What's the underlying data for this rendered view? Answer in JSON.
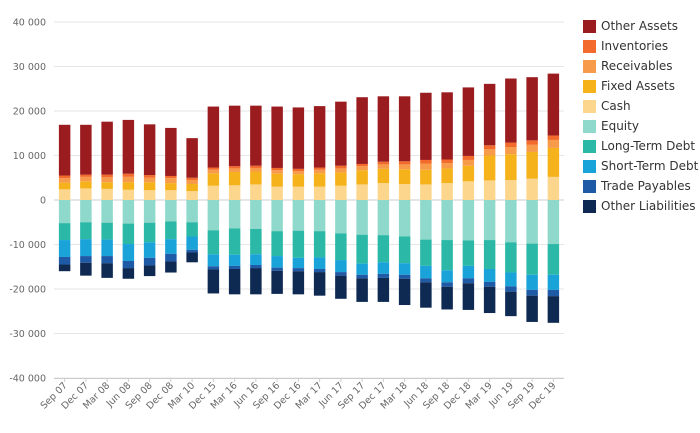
{
  "chart_data": {
    "type": "bar",
    "stacked": true,
    "grid": true,
    "legend_position": "right",
    "categories": [
      "Sep 07",
      "Dec 07",
      "Mar 08",
      "Jun 08",
      "Sep 08",
      "Dec 08",
      "Mar 10",
      "Dec 15",
      "Mar 16",
      "Jun 16",
      "Sep 16",
      "Dec 16",
      "Mar 17",
      "Jun 17",
      "Sep 17",
      "Dec 17",
      "Mar 18",
      "Jun 18",
      "Sep 18",
      "Dec 18",
      "Mar 19",
      "Jun 19",
      "Sep 19",
      "Dec 19"
    ],
    "x_tick_labels": [
      "Sep 07",
      "Dec 07",
      "Mar 08",
      "Jun 08",
      "Sep 08",
      "Dec 08",
      "Mar 10",
      "Dec 15",
      "Mar 16",
      "Jun 16",
      "Sep 16",
      "Dec 16",
      "Mar 17",
      "Jun 17",
      "Sep 17",
      "Dec 17",
      "Mar 18",
      "Jun 18",
      "Sep 18",
      "Dec 18",
      "Mar 19",
      "Jun 19",
      "Sep 19",
      "Dec 19"
    ],
    "y_ticks": [
      -40000,
      -30000,
      -20000,
      -10000,
      0,
      10000,
      20000,
      30000,
      40000
    ],
    "y_tick_labels": [
      "-40 000",
      "-30 000",
      "-20 000",
      "-10 000",
      "0",
      "10 000",
      "20 000",
      "30 000",
      "40 000"
    ],
    "ylim": [
      -40000,
      40000
    ],
    "positive_series": [
      {
        "name": "Cash",
        "color": "#fcd68c",
        "values": [
          2400,
          2600,
          2500,
          2300,
          2200,
          2200,
          2000,
          3200,
          3300,
          3500,
          3000,
          3000,
          3000,
          3200,
          3500,
          3800,
          3600,
          3500,
          3800,
          4200,
          4400,
          4500,
          4800,
          5200
        ]
      },
      {
        "name": "Fixed Assets",
        "color": "#f5b21a",
        "values": [
          1500,
          1600,
          1500,
          1700,
          1800,
          1600,
          1600,
          2800,
          3000,
          2900,
          2900,
          2800,
          3000,
          3000,
          3200,
          3200,
          3300,
          3300,
          3300,
          3500,
          5600,
          5800,
          6000,
          6500
        ]
      },
      {
        "name": "Receivables",
        "color": "#f79a4a",
        "values": [
          1000,
          1000,
          1100,
          1200,
          1000,
          1100,
          900,
          800,
          800,
          800,
          800,
          700,
          800,
          900,
          900,
          1000,
          1100,
          1400,
          1200,
          1300,
          1400,
          1600,
          1600,
          1800
        ]
      },
      {
        "name": "Inventories",
        "color": "#f26b2c",
        "values": [
          600,
          500,
          600,
          700,
          600,
          500,
          500,
          500,
          500,
          500,
          500,
          500,
          500,
          600,
          500,
          600,
          700,
          800,
          800,
          900,
          900,
          1000,
          1000,
          1000
        ]
      },
      {
        "name": "Other Assets",
        "color": "#9b1c1f",
        "values": [
          11400,
          11200,
          11900,
          12100,
          11400,
          10800,
          8900,
          13700,
          13600,
          13500,
          13800,
          13800,
          13800,
          14400,
          15000,
          14700,
          14600,
          15100,
          15100,
          15400,
          13800,
          14400,
          14200,
          13900
        ]
      }
    ],
    "negative_series": [
      {
        "name": "Equity",
        "color": "#8fd9cc",
        "values": [
          -5200,
          -5000,
          -5100,
          -5300,
          -5100,
          -4800,
          -5000,
          -6800,
          -6400,
          -6500,
          -7000,
          -6900,
          -7000,
          -7500,
          -7800,
          -7900,
          -8200,
          -8900,
          -9000,
          -9100,
          -9000,
          -9500,
          -9800,
          -9900
        ]
      },
      {
        "name": "Long-Term Debt",
        "color": "#2cb8a6",
        "values": [
          -3800,
          -3800,
          -3800,
          -4600,
          -4400,
          -4000,
          -3200,
          -5400,
          -5900,
          -5700,
          -5600,
          -6100,
          -5900,
          -6000,
          -6500,
          -6100,
          -6000,
          -5900,
          -6800,
          -5700,
          -6500,
          -6800,
          -7000,
          -6900
        ]
      },
      {
        "name": "Short-Term Debt",
        "color": "#1aa3d9",
        "values": [
          -3800,
          -3800,
          -3700,
          -3800,
          -3500,
          -3300,
          -3000,
          -2700,
          -2500,
          -2400,
          -2600,
          -2300,
          -2600,
          -2700,
          -2500,
          -2600,
          -2600,
          -2800,
          -2700,
          -2800,
          -2900,
          -3100,
          -3400,
          -3400
        ]
      },
      {
        "name": "Trade Payables",
        "color": "#1f5aa6",
        "values": [
          -1700,
          -1500,
          -1600,
          -1600,
          -1700,
          -1700,
          -600,
          -700,
          -700,
          -700,
          -700,
          -700,
          -700,
          -800,
          -800,
          -900,
          -900,
          -900,
          -1000,
          -1100,
          -1100,
          -1200,
          -1300,
          -1400
        ]
      },
      {
        "name": "Other Liabilities",
        "color": "#0e2a52",
        "values": [
          -1500,
          -2900,
          -3300,
          -2400,
          -2400,
          -2500,
          -2200,
          -5400,
          -5700,
          -5900,
          -5200,
          -5200,
          -5300,
          -5200,
          -5300,
          -5400,
          -5900,
          -5700,
          -5100,
          -6000,
          -5900,
          -5500,
          -5900,
          -6000
        ]
      }
    ],
    "legend": [
      {
        "label": "Other Assets",
        "color": "#9b1c1f"
      },
      {
        "label": "Inventories",
        "color": "#f26b2c"
      },
      {
        "label": "Receivables",
        "color": "#f79a4a"
      },
      {
        "label": "Fixed Assets",
        "color": "#f5b21a"
      },
      {
        "label": "Cash",
        "color": "#fcd68c"
      },
      {
        "label": "Equity",
        "color": "#8fd9cc"
      },
      {
        "label": "Long-Term Debt",
        "color": "#2cb8a6"
      },
      {
        "label": "Short-Term Debt",
        "color": "#1aa3d9"
      },
      {
        "label": "Trade Payables",
        "color": "#1f5aa6"
      },
      {
        "label": "Other Liabilities",
        "color": "#0e2a52"
      }
    ]
  }
}
